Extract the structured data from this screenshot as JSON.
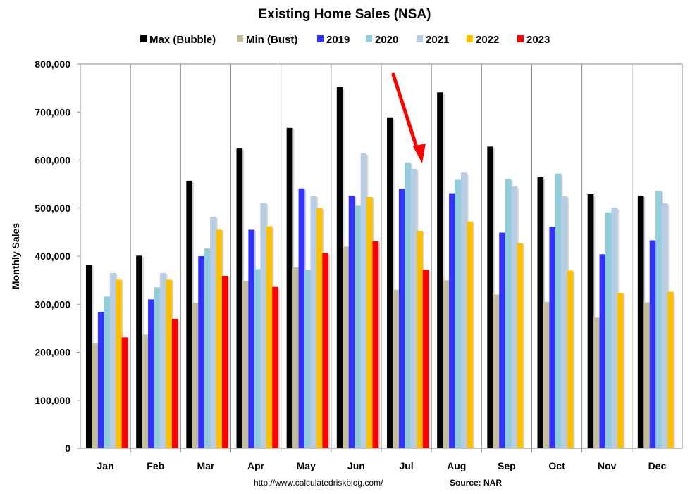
{
  "chart_data": {
    "type": "bar",
    "title": "Existing Home Sales (NSA)",
    "ylabel": "Monthly Sales",
    "xlabel": "",
    "ylim": [
      0,
      800000
    ],
    "y_ticks": [
      "0",
      "100,000",
      "200,000",
      "300,000",
      "400,000",
      "500,000",
      "600,000",
      "700,000",
      "800,000"
    ],
    "grid": "vertical category separators",
    "legend_position": "top",
    "categories": [
      "Jan",
      "Feb",
      "Mar",
      "Apr",
      "May",
      "Jun",
      "Jul",
      "Aug",
      "Sep",
      "Oct",
      "Nov",
      "Dec"
    ],
    "series": [
      {
        "name": "Max (Bubble)",
        "color": "#000000",
        "values": [
          382000,
          401000,
          557000,
          624000,
          667000,
          752000,
          689000,
          741000,
          628000,
          564000,
          529000,
          526000
        ]
      },
      {
        "name": "Min (Bust)",
        "color": "#C4BD97",
        "values": [
          218000,
          237000,
          303000,
          348000,
          377000,
          420000,
          330000,
          350000,
          320000,
          305000,
          272000,
          304000
        ]
      },
      {
        "name": "2019",
        "color": "#3333FF",
        "values": [
          284000,
          310000,
          400000,
          455000,
          541000,
          526000,
          540000,
          531000,
          449000,
          461000,
          404000,
          433000
        ]
      },
      {
        "name": "2020",
        "color": "#92CDDC",
        "values": [
          316000,
          335000,
          416000,
          373000,
          371000,
          505000,
          595000,
          559000,
          561000,
          572000,
          491000,
          536000
        ]
      },
      {
        "name": "2021",
        "color": "#B8CCE4",
        "values": [
          365000,
          365000,
          482000,
          511000,
          526000,
          614000,
          582000,
          574000,
          545000,
          525000,
          501000,
          510000
        ]
      },
      {
        "name": "2022",
        "color": "#FFC000",
        "values": [
          351000,
          351000,
          455000,
          462000,
          500000,
          523000,
          453000,
          472000,
          427000,
          370000,
          324000,
          326000
        ]
      },
      {
        "name": "2023",
        "color": "#FF0000",
        "values": [
          231000,
          269000,
          359000,
          336000,
          406000,
          431000,
          372000,
          null,
          null,
          null,
          null,
          null
        ]
      }
    ],
    "annotation_arrow_color": "#FF0000"
  },
  "footer": {
    "url": "http://www.calculatedriskblog.com/",
    "source": "Source: NAR"
  }
}
